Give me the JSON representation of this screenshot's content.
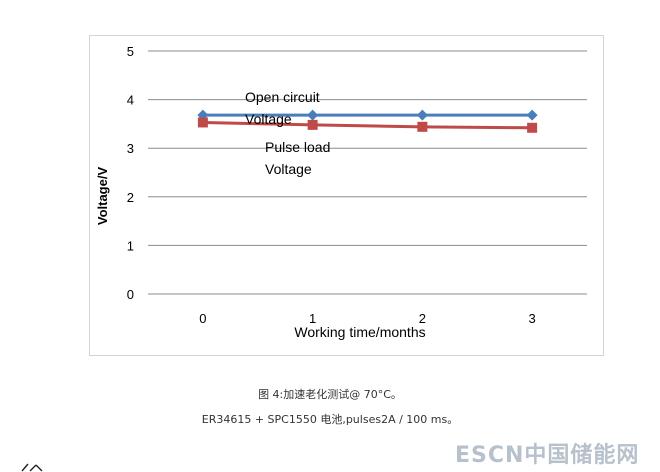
{
  "chart_data": {
    "type": "line",
    "x": [
      0,
      1,
      2,
      3
    ],
    "xlabel": "Working time/months",
    "ylabel": "Voltage/V",
    "xlim": [
      -0.5,
      3.5
    ],
    "ylim": [
      0,
      5
    ],
    "yticks": [
      0,
      1,
      2,
      3,
      4,
      5
    ],
    "xticks": [
      0,
      1,
      2,
      3
    ],
    "grid": true,
    "series": [
      {
        "values": [
          3.68,
          3.68,
          3.68,
          3.68
        ],
        "color": "#4a7ebb",
        "marker": "diamond"
      },
      {
        "values": [
          3.53,
          3.48,
          3.44,
          3.42
        ],
        "color": "#be4b48",
        "marker": "square"
      }
    ],
    "annotations": [
      {
        "lines": [
          "Open circuit",
          "Voltage"
        ]
      },
      {
        "lines": [
          "Pulse load",
          "Voltage"
        ]
      }
    ]
  },
  "caption": {
    "line1": "图 4:加速老化测试@ 70°C。",
    "line2": "ER34615 + SPC1550 电池,pulses2A / 100 ms。"
  },
  "watermark": {
    "text": "ESCN中国储能网"
  }
}
